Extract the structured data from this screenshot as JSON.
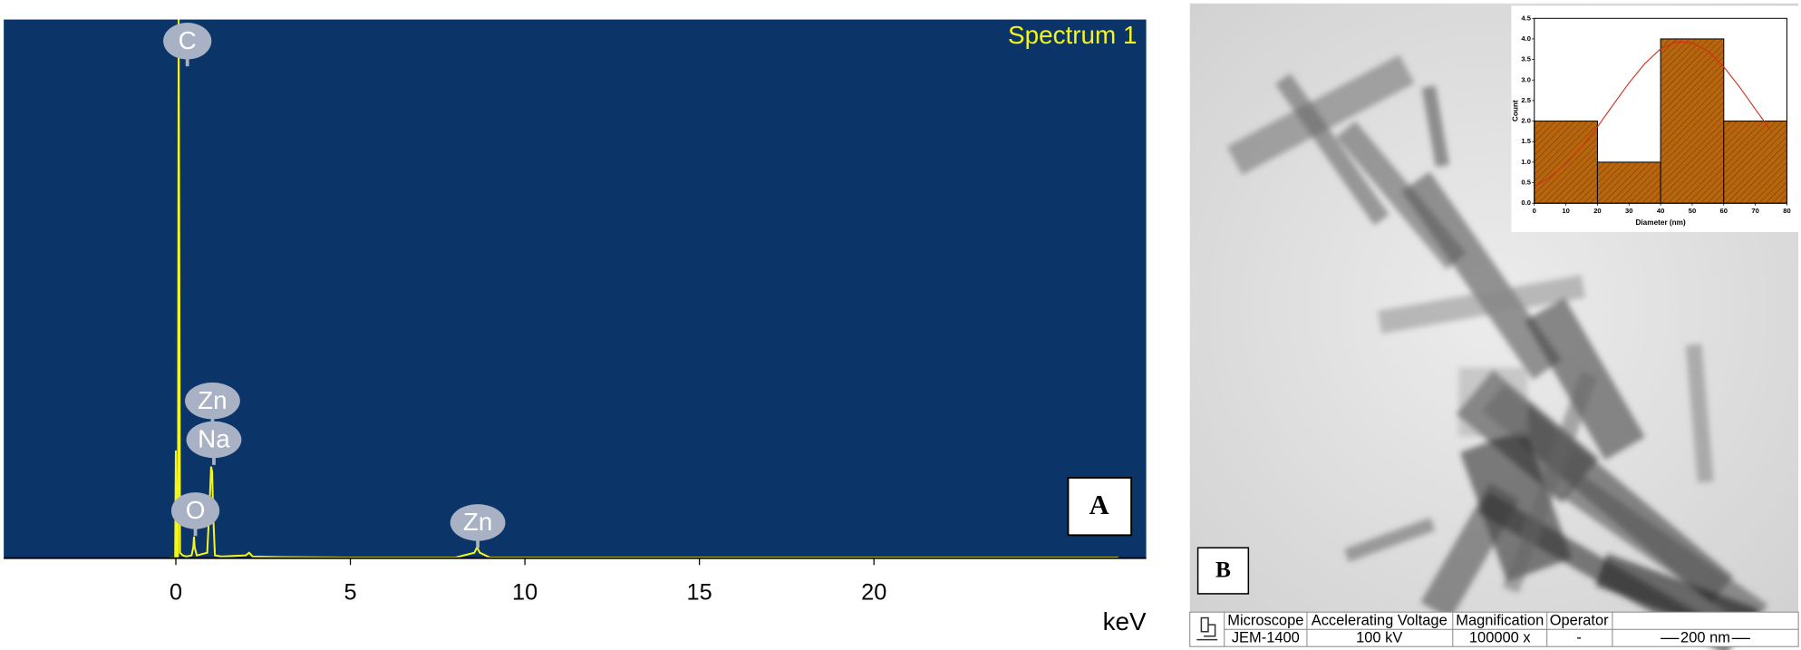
{
  "chart_data": [
    {
      "type": "line",
      "title": "Spectrum 1",
      "xlabel": "keV",
      "x": [
        -0.2,
        -0.02,
        0.0,
        0.03,
        0.06,
        0.08,
        0.1,
        0.12,
        0.2,
        0.3,
        0.45,
        0.5,
        0.52,
        0.54,
        0.6,
        0.9,
        0.98,
        1.01,
        1.04,
        1.07,
        1.12,
        1.3,
        2.0,
        2.1,
        2.2,
        3,
        5,
        8,
        8.55,
        8.63,
        8.71,
        9,
        12,
        20,
        27
      ],
      "values": [
        0,
        0,
        20,
        0,
        0,
        100,
        55,
        1,
        0.5,
        0.3,
        0.5,
        2,
        4,
        2,
        0.5,
        1,
        12,
        17,
        16,
        8,
        0.5,
        0.3,
        0.5,
        1,
        0.3,
        0.2,
        0.1,
        0.1,
        1,
        2,
        1,
        0.1,
        0.1,
        0.1,
        0.1
      ],
      "color": "#f5f51e",
      "xlim": [
        -4.93,
        27.8
      ],
      "ylim": [
        0,
        100
      ],
      "xticks": [
        0,
        5,
        10,
        15,
        20
      ],
      "annotations": [
        {
          "text": "C",
          "x": 0.33,
          "y": 96
        },
        {
          "text": "Zn",
          "x": 1.05,
          "y": 29.2
        },
        {
          "text": "Na",
          "x": 1.09,
          "y": 22
        },
        {
          "text": "O",
          "x": 0.56,
          "y": 8.8
        },
        {
          "text": "Zn",
          "x": 8.65,
          "y": 6.6
        }
      ]
    },
    {
      "type": "histogram",
      "xlabel": "Diameter (nm)",
      "ylabel": "Count",
      "bins": [
        0,
        20,
        40,
        60,
        80
      ],
      "values": [
        2,
        1,
        4,
        2
      ],
      "color": "#b8660e",
      "fit": {
        "x": [
          0,
          5,
          10,
          15,
          20,
          25,
          30,
          35,
          40,
          45,
          50,
          55,
          60,
          65,
          70,
          75
        ],
        "values": [
          0.4,
          0.64,
          0.96,
          1.37,
          1.86,
          2.4,
          2.93,
          3.4,
          3.76,
          3.93,
          3.91,
          3.7,
          3.32,
          2.83,
          2.29,
          1.76
        ],
        "color": "#d0301c"
      },
      "xlim": [
        0,
        80
      ],
      "ylim": [
        0,
        4.5
      ],
      "xticks": [
        0,
        10,
        20,
        30,
        40,
        50,
        60,
        70,
        80
      ],
      "yticks": [
        {
          "value": 0,
          "label": "0.0"
        },
        0.5,
        {
          "value": 1,
          "label": "1.0"
        },
        1.5,
        {
          "value": 2,
          "label": "2.0"
        },
        2.5,
        {
          "value": 3,
          "label": "3.0"
        },
        3.5,
        {
          "value": 4,
          "label": "4.0"
        },
        4.5
      ]
    }
  ],
  "figure": {
    "panel_a": "A",
    "panel_b": "B"
  },
  "image_info": {
    "headers": [
      "Microscope",
      "Accelerating Voltage",
      "Magnification",
      "Operator"
    ],
    "values": [
      "JEM-1400",
      "100 kV",
      "100000 x",
      "-"
    ],
    "scale_bar": "200 nm"
  }
}
